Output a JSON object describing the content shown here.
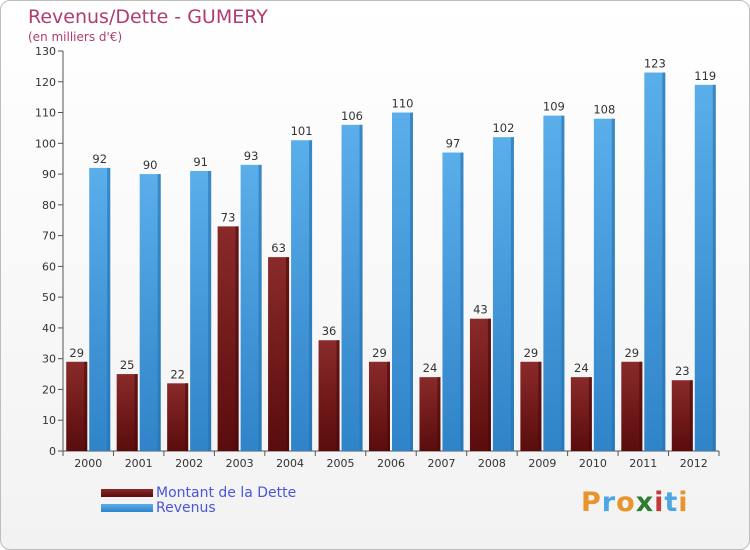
{
  "title": "Revenus/Dette - GUMERY",
  "subtitle": "(en milliers d'€)",
  "colors": {
    "series1": "#7a1c1c",
    "series2": "#4a9fe0",
    "title": "#b23b6e",
    "legend_text": "#4a55d8"
  },
  "logo": {
    "text": "Proxiti",
    "letter_colors": [
      "#e8932c",
      "#4da6e0",
      "#e8932c",
      "#2e7d32",
      "#c33a3a",
      "#4da6e0",
      "#e8932c"
    ]
  },
  "chart_data": {
    "type": "bar",
    "title": "Revenus/Dette - GUMERY",
    "subtitle": "(en milliers d'€)",
    "categories": [
      "2000",
      "2001",
      "2002",
      "2003",
      "2004",
      "2005",
      "2006",
      "2007",
      "2008",
      "2009",
      "2010",
      "2011",
      "2012"
    ],
    "series": [
      {
        "name": "Montant de la Dette",
        "values": [
          29,
          25,
          22,
          73,
          63,
          36,
          29,
          24,
          43,
          29,
          24,
          29,
          23
        ]
      },
      {
        "name": "Revenus",
        "values": [
          92,
          90,
          91,
          93,
          101,
          106,
          110,
          97,
          102,
          109,
          108,
          123,
          119
        ]
      }
    ],
    "ylim": [
      0,
      130
    ],
    "yticks": [
      0,
      10,
      20,
      30,
      40,
      50,
      60,
      70,
      80,
      90,
      100,
      110,
      120,
      130
    ],
    "grid": false,
    "legend_position": "bottom-left"
  }
}
